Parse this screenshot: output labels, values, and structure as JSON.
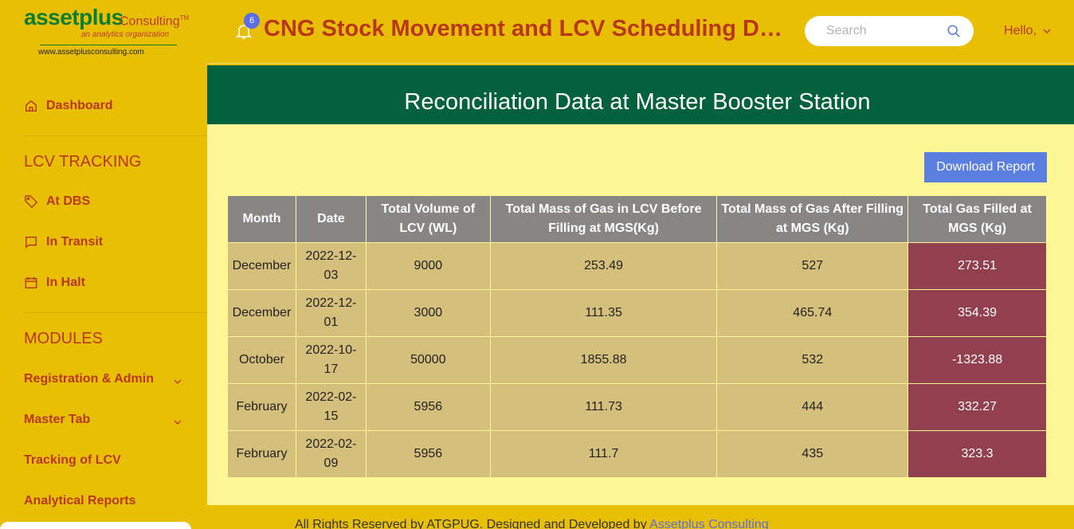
{
  "logo": {
    "brand": "assetplus",
    "consulting": "Consulting",
    "tm": "TM",
    "tagline": "an analytics organization",
    "url": "www.assetplusconsulting.com"
  },
  "sidebar": {
    "dashboard": "Dashboard",
    "lcv_tracking_heading": "LCV TRACKING",
    "at_dbs": "At DBS",
    "in_transit": "In Transit",
    "in_halt": "In Halt",
    "modules_heading": "MODULES",
    "registration_admin": "Registration & Admin",
    "master_tab": "Master Tab",
    "tracking_of_lcv": "Tracking of LCV",
    "analytical_reports": "Analytical Reports"
  },
  "header": {
    "notification_count": "6",
    "title": "CNG Stock Movement and LCV Scheduling Dashboard",
    "search_placeholder": "Search",
    "greeting": "Hello,"
  },
  "main": {
    "banner_title": "Reconciliation Data at Master Booster Station",
    "download_label": "Download Report",
    "columns": [
      "Month",
      "Date",
      "Total Volume of LCV (WL)",
      "Total Mass of Gas in LCV Before Filling at MGS(Kg)",
      "Total Mass of Gas After Filling at MGS (Kg)",
      "Total Gas Filled at MGS (Kg)"
    ],
    "rows": [
      [
        "December",
        "2022-12-03",
        "9000",
        "253.49",
        "527",
        "273.51"
      ],
      [
        "December",
        "2022-12-01",
        "3000",
        "111.35",
        "465.74",
        "354.39"
      ],
      [
        "October",
        "2022-10-17",
        "50000",
        "1855.88",
        "532",
        "-1323.88"
      ],
      [
        "February",
        "2022-02-15",
        "5956",
        "111.73",
        "444",
        "332.27"
      ],
      [
        "February",
        "2022-02-09",
        "5956",
        "111.7",
        "435",
        "323.3"
      ]
    ]
  },
  "footer": {
    "text": "All Rights Reserved by ATGPUG. Designed and Developed by ",
    "link": "Assetplus Consulting"
  },
  "colors": {
    "primary_yellow": "#e9bf06",
    "accent_red": "#b8371b",
    "banner_green": "#04613e",
    "highlight_maroon": "#923f4e",
    "button_blue": "#5a7fe0"
  }
}
